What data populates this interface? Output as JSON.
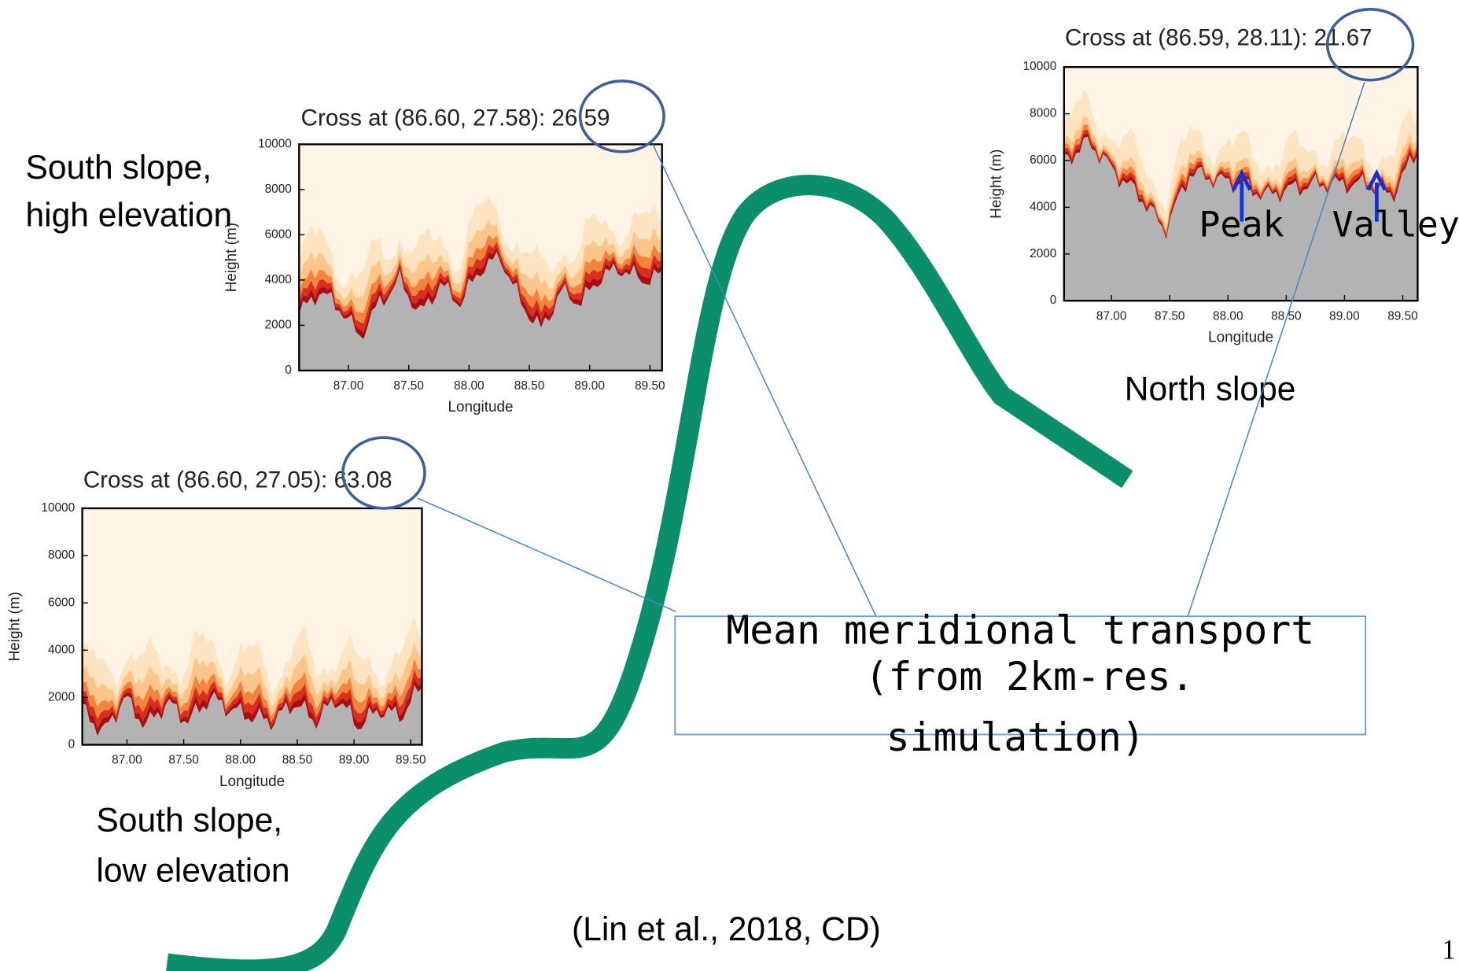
{
  "panels": [
    {
      "title": "Cross at (86.60, 27.58): 26.59",
      "y_label": "Height (m)",
      "x_label": "Longitude",
      "yticks": [
        "0",
        "2000",
        "4000",
        "6000",
        "8000",
        "10000"
      ],
      "xticks": [
        "87.00",
        "87.50",
        "88.00",
        "88.50",
        "89.00",
        "89.50"
      ],
      "caption": [
        "South slope,",
        "high elevation"
      ]
    },
    {
      "title": "Cross at (86.60, 27.05): 63.08",
      "y_label": "Height (m)",
      "x_label": "Longitude",
      "yticks": [
        "0",
        "2000",
        "4000",
        "6000",
        "8000",
        "10000"
      ],
      "xticks": [
        "87.00",
        "87.50",
        "88.00",
        "88.50",
        "89.00",
        "89.50"
      ],
      "caption": [
        "South slope,",
        "low elevation"
      ]
    },
    {
      "title": "Cross at (86.59, 28.11): 21.67",
      "y_label": "Height (m)",
      "x_label": "Longitude",
      "yticks": [
        "0",
        "2000",
        "4000",
        "6000",
        "8000",
        "10000"
      ],
      "xticks": [
        "87.00",
        "87.50",
        "88.00",
        "88.50",
        "89.00",
        "89.50"
      ],
      "caption": [
        "North slope"
      ],
      "markers": [
        "Peak",
        "Valley"
      ]
    }
  ],
  "box_text": [
    "Mean meridional transport",
    "(from 2km-res.",
    "simulation)"
  ],
  "citation": "(Lin et al., 2018, CD)",
  "page_number": "1"
}
